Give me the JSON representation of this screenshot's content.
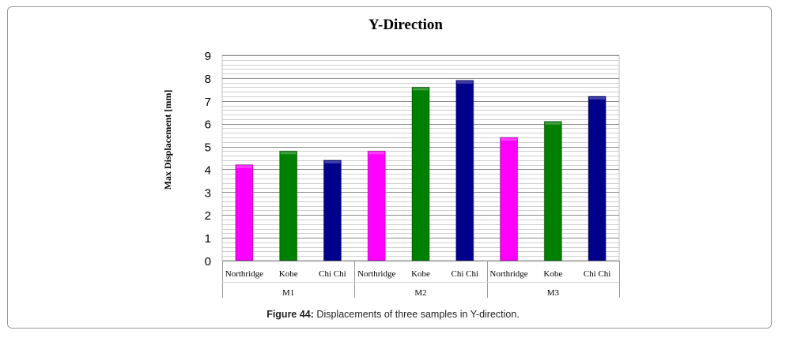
{
  "chart_data": {
    "type": "bar",
    "title": "Y-Direction",
    "ylabel": "Max Displacement [mm]",
    "xlabel": "",
    "ylim": [
      0,
      9
    ],
    "yticks": [
      "0",
      "1",
      "2",
      "3",
      "4",
      "5",
      "6",
      "7",
      "8",
      "9"
    ],
    "groups": [
      "M1",
      "M2",
      "M3"
    ],
    "categories": [
      "Northridge",
      "Kobe",
      "Chi Chi"
    ],
    "series": [
      {
        "name": "Northridge",
        "color": "#ff00ff",
        "values": [
          4.2,
          4.8,
          5.4
        ]
      },
      {
        "name": "Kobe",
        "color": "#008000",
        "values": [
          4.8,
          7.6,
          6.1
        ]
      },
      {
        "name": "Chi Chi",
        "color": "#00008b",
        "values": [
          4.4,
          7.9,
          7.2
        ]
      }
    ]
  },
  "caption": {
    "label": "Figure 44:",
    "text": " Displacements of three samples in Y-direction."
  }
}
